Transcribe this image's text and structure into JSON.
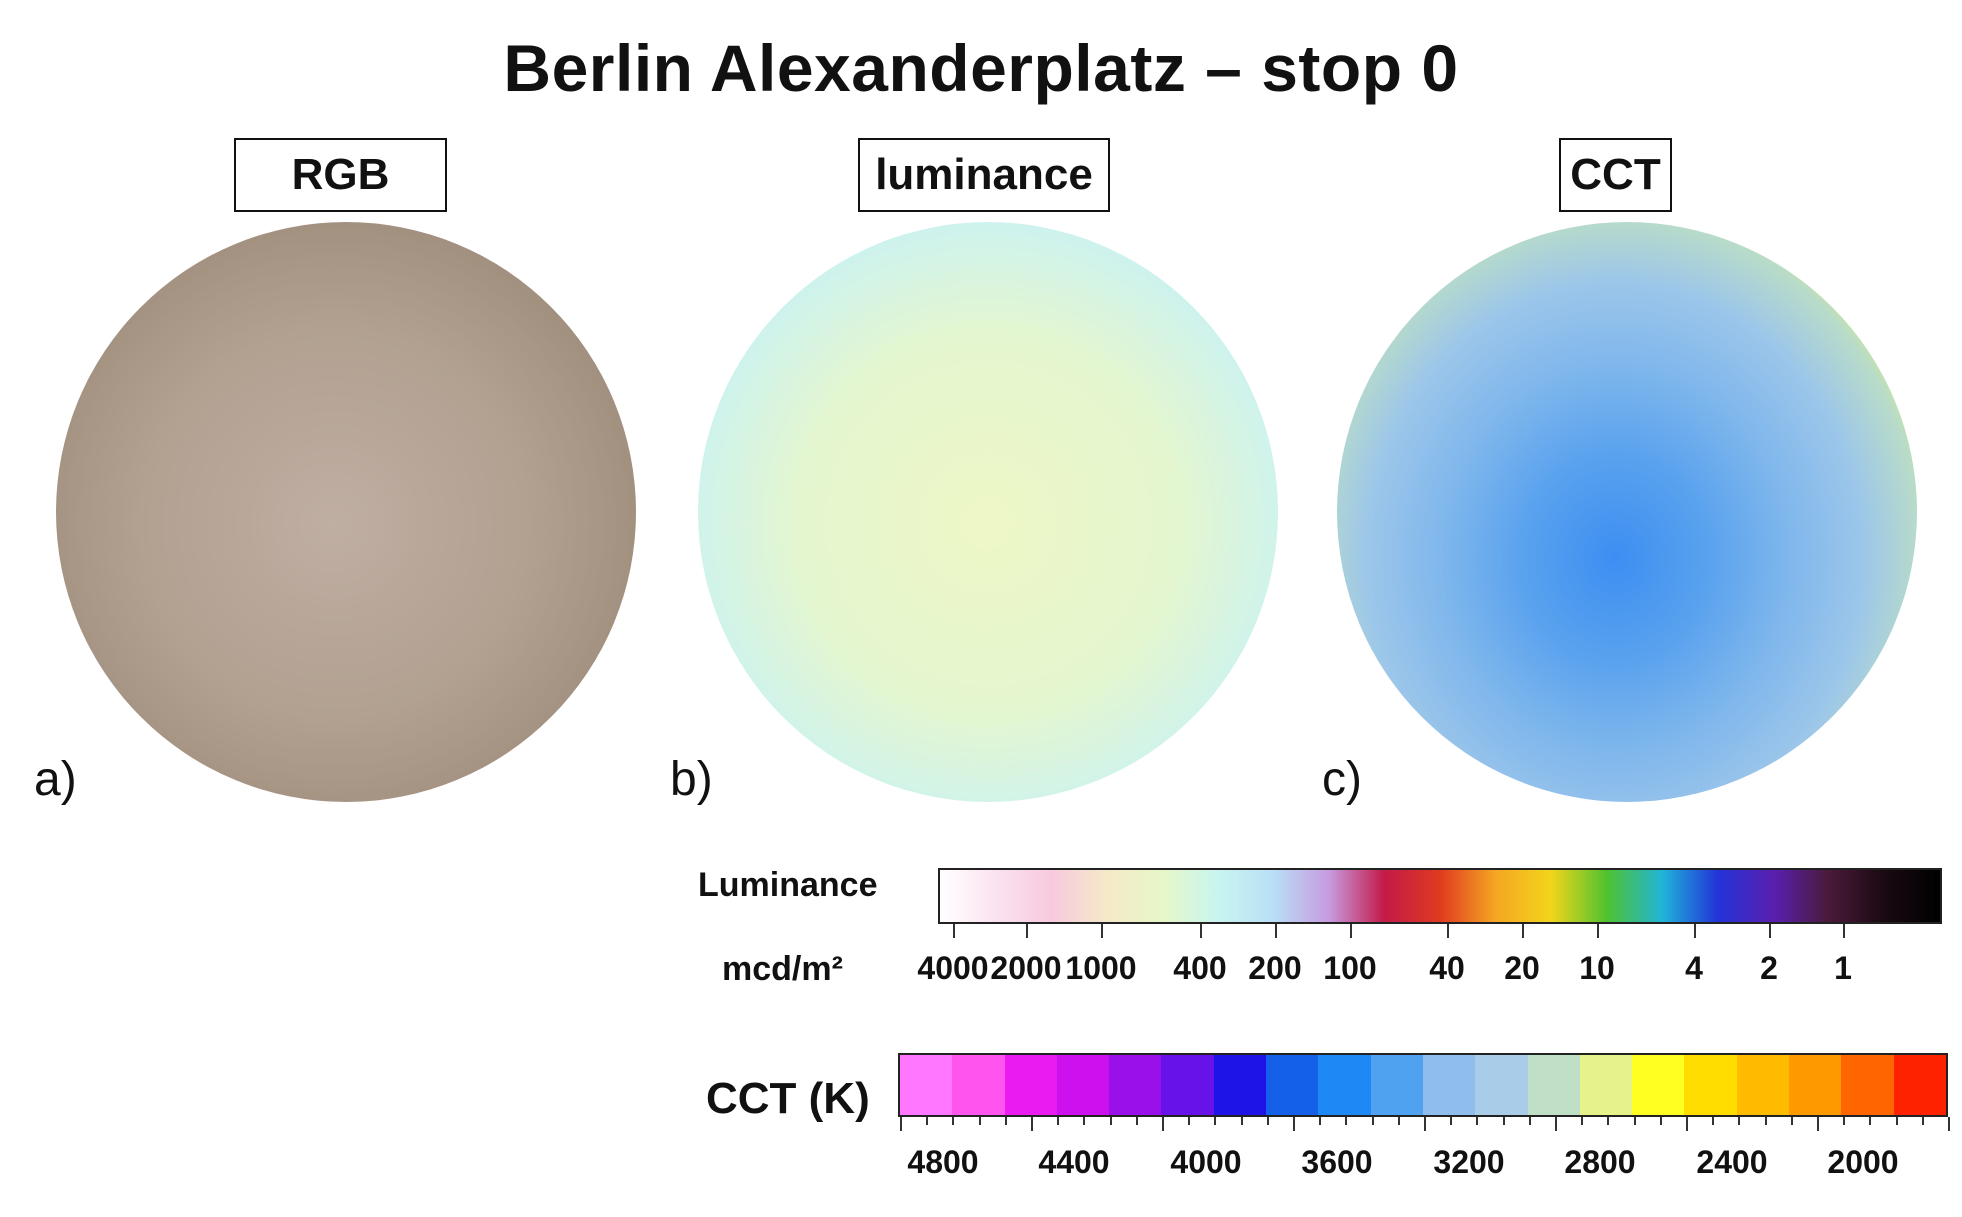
{
  "title": "Berlin Alexanderplatz – stop 0",
  "panels": [
    {
      "letter": "a)",
      "label": "RGB"
    },
    {
      "letter": "b)",
      "label": "luminance"
    },
    {
      "letter": "c)",
      "label": "CCT"
    }
  ],
  "luminance_legend": {
    "name": "Luminance",
    "unit": "mcd/m²",
    "tick_labels": [
      "4000",
      "2000",
      "1000",
      "400",
      "200",
      "100",
      "40",
      "20",
      "10",
      "4",
      "2",
      "1"
    ]
  },
  "cct_legend": {
    "name": "CCT (K)",
    "tick_labels": [
      "4800",
      "4400",
      "4000",
      "3600",
      "3200",
      "2800",
      "2400",
      "2000"
    ]
  },
  "colors": {
    "luminance_scale": [
      "#ffffff",
      "#fbe3f1",
      "#f7c9de",
      "#f5e9c8",
      "#e7f7c7",
      "#c8f5f0",
      "#b9dff6",
      "#c79be0",
      "#c31a48",
      "#e03a1f",
      "#f5a623",
      "#f2d51a",
      "#4fc22f",
      "#20b5d8",
      "#2233d8",
      "#5a1fb0",
      "#4a1a3a",
      "#1a0a12",
      "#000000"
    ],
    "cct_scale": [
      "#ff77ff",
      "#ff55ee",
      "#e81cf0",
      "#cc11ee",
      "#9a10ea",
      "#6612e8",
      "#1e14e8",
      "#1560e8",
      "#1e88f5",
      "#4ea2f0",
      "#8fbdec",
      "#a9cde8",
      "#bfe0c6",
      "#e6f28a",
      "#ffff22",
      "#ffdd00",
      "#ffbb00",
      "#ff9900",
      "#ff6600",
      "#ff2200"
    ]
  }
}
